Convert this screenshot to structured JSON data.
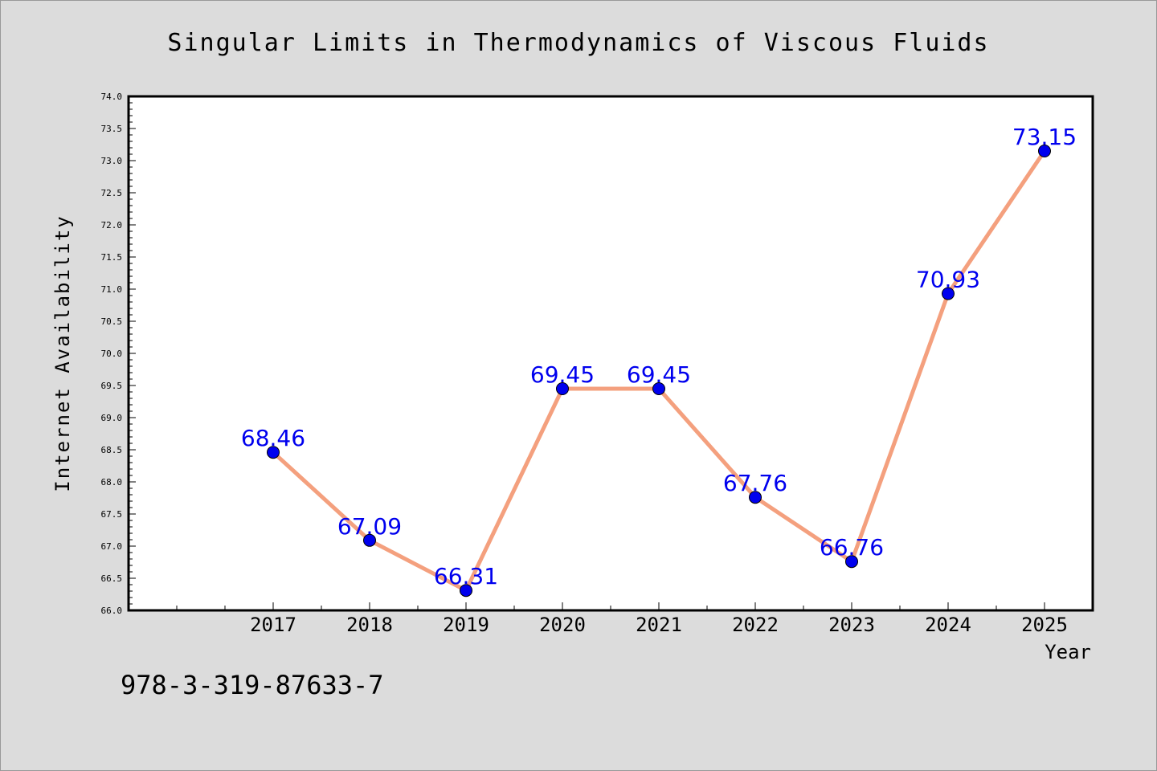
{
  "chart_data": {
    "type": "line",
    "title": "Singular Limits in Thermodynamics of Viscous Fluids",
    "xlabel": "Year",
    "ylabel": "Internet Availability",
    "categories": [
      "2017",
      "2018",
      "2019",
      "2020",
      "2021",
      "2022",
      "2023",
      "2024",
      "2025"
    ],
    "series": [
      {
        "values": [
          68.46,
          67.09,
          66.31,
          69.45,
          69.45,
          67.76,
          66.76,
          70.93,
          73.15
        ]
      }
    ],
    "data_labels": [
      "68.46",
      "67.09",
      "66.31",
      "69.45",
      "69.45",
      "67.76",
      "66.76",
      "70.93",
      "73.15"
    ],
    "ylim": [
      66.0,
      74.0
    ],
    "yticks": [
      "66.0",
      "66.5",
      "67.0",
      "67.5",
      "68.0",
      "68.5",
      "69.0",
      "69.5",
      "70.0",
      "70.5",
      "71.0",
      "71.5",
      "72.0",
      "72.5",
      "73.0",
      "73.5",
      "74.0"
    ],
    "grid": false,
    "line_color": "#f4a07e",
    "marker_color": "#0000ee",
    "label_color": "#0000ee",
    "background": "#dcdcdc",
    "plot_background": "#ffffff"
  },
  "annotation": "978-3-319-87633-7"
}
